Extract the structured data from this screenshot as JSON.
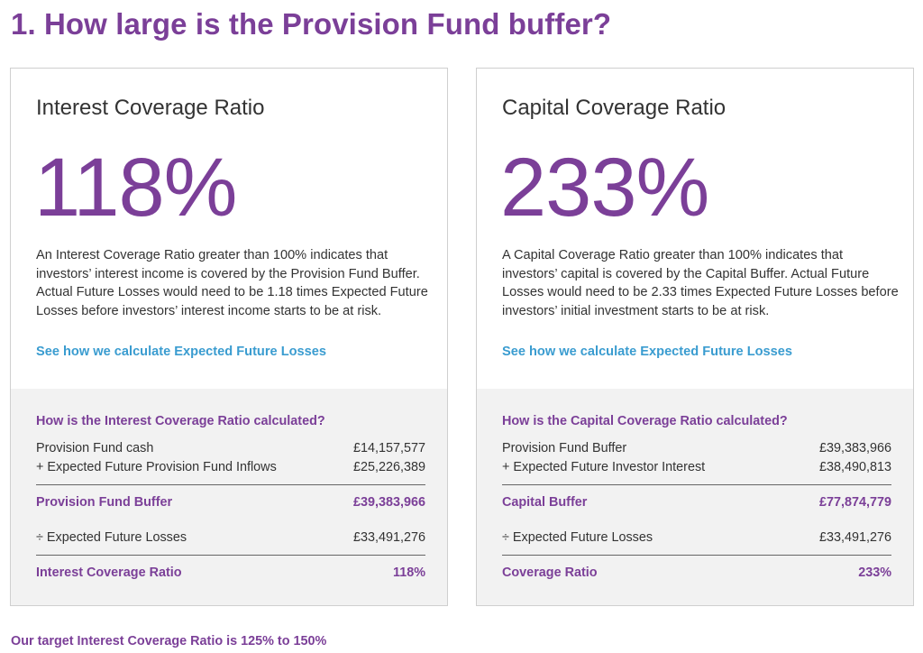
{
  "page": {
    "title": "1. How large is the Provision Fund buffer?",
    "footer_note": "Our target Interest Coverage Ratio is 125% to 150%",
    "accent_color": "#7b3f98",
    "link_color": "#3a9cd0"
  },
  "interest_card": {
    "heading": "Interest Coverage Ratio",
    "big_value": "118%",
    "description": "An Interest Coverage Ratio greater than 100% indicates that investors’ interest income is covered by the Provision Fund Buffer. Actual Future Losses would need to be 1.18 times Expected Future Losses before investors’ interest income starts to be at risk.",
    "link": "See how we calculate Expected Future Losses",
    "calc_heading": "How is the Interest Coverage Ratio calculated?",
    "rows": [
      {
        "label": "Provision Fund cash",
        "value": "£14,157,577"
      },
      {
        "label": "+ Expected Future Provision Fund Inflows",
        "value": "£25,226,389"
      },
      {
        "label": "Provision Fund Buffer",
        "value": "£39,383,966"
      },
      {
        "label": "÷ Expected Future Losses",
        "value": "£33,491,276"
      },
      {
        "label": "Interest Coverage Ratio",
        "value": "118%"
      }
    ]
  },
  "capital_card": {
    "heading": "Capital Coverage Ratio",
    "big_value": "233%",
    "description": "A Capital Coverage Ratio greater than 100% indicates that investors’ capital is covered by the Capital Buffer. Actual Future Losses would need to be 2.33 times Expected Future Losses before investors’ initial investment starts to be at risk.",
    "link": "See how we calculate Expected Future Losses",
    "calc_heading": "How is the Capital Coverage Ratio calculated?",
    "rows": [
      {
        "label": "Provision Fund Buffer",
        "value": "£39,383,966"
      },
      {
        "label": "+ Expected Future Investor Interest",
        "value": "£38,490,813"
      },
      {
        "label": "Capital Buffer",
        "value": "£77,874,779"
      },
      {
        "label": "÷ Expected Future Losses",
        "value": "£33,491,276"
      },
      {
        "label": "Coverage Ratio",
        "value": "233%"
      }
    ]
  }
}
